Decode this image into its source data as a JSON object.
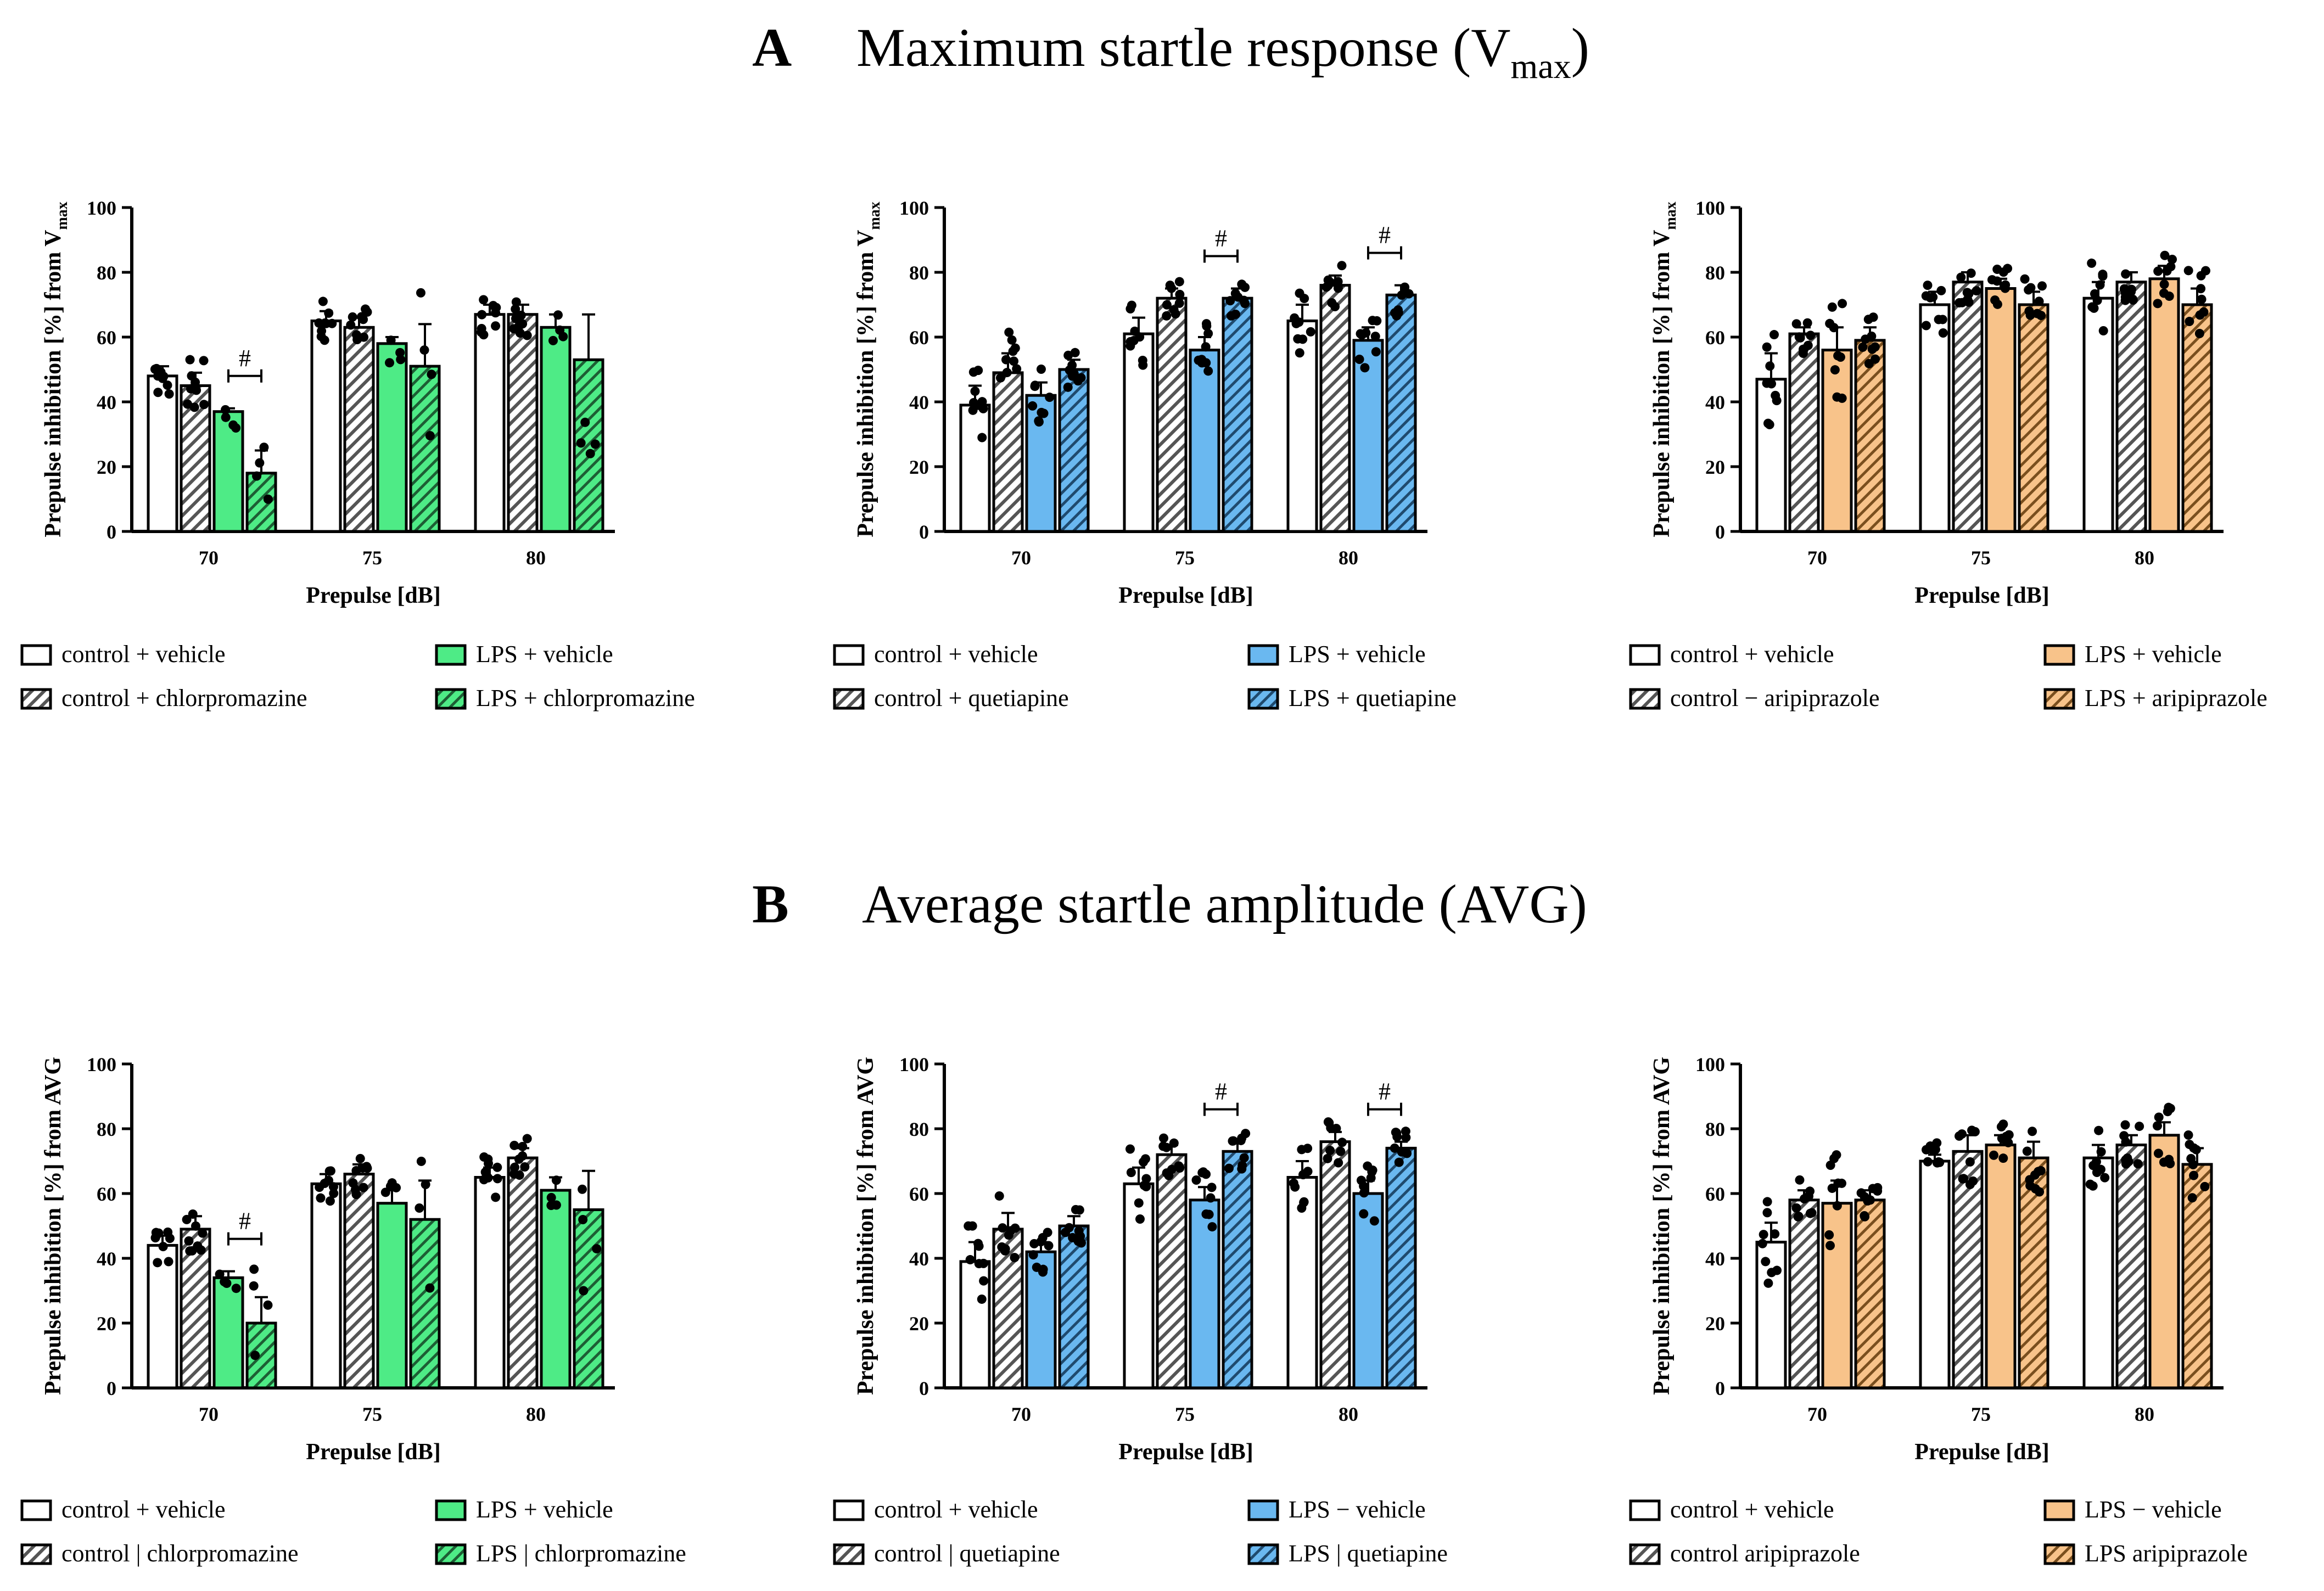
{
  "title_a": {
    "letter": "A",
    "text": "Maximum startle response (V",
    "sub": "max",
    "close": ")"
  },
  "title_b": {
    "letter": "B",
    "text": "Average startle amplitude (AVG)"
  },
  "colors": {
    "chlorpromazine": "#4eeb86",
    "quetiapine": "#6ab8f0",
    "aripiprazole": "#f8c38a",
    "control": "#ffffff"
  },
  "chart_data": [
    {
      "type": "bar",
      "id": "A-chlorpromazine",
      "drug": "chlorpromazine",
      "ylabel": "Prepulse inhibition [%] from V",
      "ylabel_sub": "max",
      "xlabel": "Prepulse [dB]",
      "ylim": [
        0,
        100
      ],
      "yticks": [
        "0",
        "20",
        "40",
        "60",
        "80",
        "100"
      ],
      "categories": [
        "70",
        "75",
        "80"
      ],
      "series": [
        {
          "name": "control + vehicle",
          "values": [
            48,
            65,
            67
          ],
          "sem": [
            3,
            3,
            3
          ]
        },
        {
          "name": "control + chlorpromazine",
          "values": [
            45,
            63,
            67
          ],
          "sem": [
            4,
            3,
            3
          ]
        },
        {
          "name": "LPS + vehicle",
          "values": [
            37,
            58,
            63
          ],
          "sem": [
            1,
            2,
            4
          ]
        },
        {
          "name": "LPS + chlorpromazine",
          "values": [
            18,
            51,
            53
          ],
          "sem": [
            7,
            13,
            14
          ]
        }
      ],
      "annotations": [
        {
          "text": "#",
          "category": "70"
        }
      ]
    },
    {
      "type": "bar",
      "id": "A-quetiapine",
      "drug": "quetiapine",
      "ylabel": "Prepulse inhibition [%] from V",
      "ylabel_sub": "max",
      "xlabel": "Prepulse [dB]",
      "ylim": [
        0,
        100
      ],
      "yticks": [
        "0",
        "20",
        "40",
        "60",
        "80",
        "100"
      ],
      "categories": [
        "70",
        "75",
        "80"
      ],
      "series": [
        {
          "name": "control + vehicle",
          "values": [
            39,
            61,
            65
          ],
          "sem": [
            6,
            5,
            5
          ]
        },
        {
          "name": "control + quetiapine",
          "values": [
            49,
            72,
            76
          ],
          "sem": [
            6,
            3,
            3
          ]
        },
        {
          "name": "LPS + vehicle",
          "values": [
            42,
            56,
            59
          ],
          "sem": [
            4,
            4,
            4
          ]
        },
        {
          "name": "LPS + quetiapine",
          "values": [
            50,
            72,
            73
          ],
          "sem": [
            3,
            3,
            3
          ]
        }
      ],
      "annotations": [
        {
          "text": "#",
          "category": "75"
        },
        {
          "text": "#",
          "category": "80"
        }
      ]
    },
    {
      "type": "bar",
      "id": "A-aripiprazole",
      "drug": "aripiprazole",
      "ylabel": "Prepulse inhibition [%] from V",
      "ylabel_sub": "max",
      "xlabel": "Prepulse [dB]",
      "ylim": [
        0,
        100
      ],
      "yticks": [
        "0",
        "20",
        "40",
        "60",
        "80",
        "100"
      ],
      "categories": [
        "70",
        "75",
        "80"
      ],
      "series": [
        {
          "name": "control + vehicle",
          "values": [
            47,
            70,
            72
          ],
          "sem": [
            8,
            4,
            5
          ]
        },
        {
          "name": "control − aripiprazole",
          "values": [
            61,
            77,
            77
          ],
          "sem": [
            2,
            3,
            3
          ]
        },
        {
          "name": "LPS + vehicle",
          "values": [
            56,
            75,
            78
          ],
          "sem": [
            7,
            3,
            4
          ]
        },
        {
          "name": "LPS + aripiprazole",
          "values": [
            59,
            70,
            70
          ],
          "sem": [
            4,
            4,
            5
          ]
        }
      ],
      "annotations": []
    },
    {
      "type": "bar",
      "id": "B-chlorpromazine",
      "drug": "chlorpromazine",
      "ylabel": "Prepulse inhibition [%] from AVG",
      "ylabel_sub": "",
      "xlabel": "Prepulse [dB]",
      "ylim": [
        0,
        100
      ],
      "yticks": [
        "0",
        "20",
        "40",
        "60",
        "80",
        "100"
      ],
      "categories": [
        "70",
        "75",
        "80"
      ],
      "series": [
        {
          "name": "control + vehicle",
          "values": [
            44,
            63,
            65
          ],
          "sem": [
            3,
            3,
            3
          ]
        },
        {
          "name": "control | chlorpromazine",
          "values": [
            49,
            66,
            71
          ],
          "sem": [
            4,
            3,
            3
          ]
        },
        {
          "name": "LPS + vehicle",
          "values": [
            34,
            57,
            61
          ],
          "sem": [
            2,
            4,
            4
          ]
        },
        {
          "name": "LPS | chlorpromazine",
          "values": [
            20,
            52,
            55
          ],
          "sem": [
            8,
            12,
            12
          ]
        }
      ],
      "annotations": [
        {
          "text": "#",
          "category": "70"
        }
      ]
    },
    {
      "type": "bar",
      "id": "B-quetiapine",
      "drug": "quetiapine",
      "ylabel": "Prepulse inhibition [%] from AVG",
      "ylabel_sub": "",
      "xlabel": "Prepulse [dB]",
      "ylim": [
        0,
        100
      ],
      "yticks": [
        "0",
        "20",
        "40",
        "60",
        "80",
        "100"
      ],
      "categories": [
        "70",
        "75",
        "80"
      ],
      "series": [
        {
          "name": "control + vehicle",
          "values": [
            39,
            63,
            65
          ],
          "sem": [
            6,
            5,
            5
          ]
        },
        {
          "name": "control | quetiapine",
          "values": [
            49,
            72,
            76
          ],
          "sem": [
            5,
            3,
            3
          ]
        },
        {
          "name": "LPS − vehicle",
          "values": [
            42,
            58,
            60
          ],
          "sem": [
            3,
            4,
            4
          ]
        },
        {
          "name": "LPS | quetiapine",
          "values": [
            50,
            73,
            74
          ],
          "sem": [
            3,
            3,
            2
          ]
        }
      ],
      "annotations": [
        {
          "text": "#",
          "category": "75"
        },
        {
          "text": "#",
          "category": "80"
        }
      ]
    },
    {
      "type": "bar",
      "id": "B-aripiprazole",
      "drug": "aripiprazole",
      "ylabel": "Prepulse inhibition [%] from AVG",
      "ylabel_sub": "",
      "xlabel": "Prepulse [dB]",
      "ylim": [
        0,
        100
      ],
      "yticks": [
        "0",
        "20",
        "40",
        "60",
        "80",
        "100"
      ],
      "categories": [
        "70",
        "75",
        "80"
      ],
      "series": [
        {
          "name": "control + vehicle",
          "values": [
            45,
            70,
            71
          ],
          "sem": [
            6,
            2,
            4
          ]
        },
        {
          "name": "control   aripiprazole",
          "values": [
            58,
            73,
            75
          ],
          "sem": [
            3,
            5,
            3
          ]
        },
        {
          "name": "LPS − vehicle",
          "values": [
            57,
            75,
            78
          ],
          "sem": [
            7,
            3,
            4
          ]
        },
        {
          "name": "LPS   aripiprazole",
          "values": [
            58,
            71,
            69
          ],
          "sem": [
            3,
            5,
            5
          ]
        }
      ],
      "annotations": []
    }
  ]
}
